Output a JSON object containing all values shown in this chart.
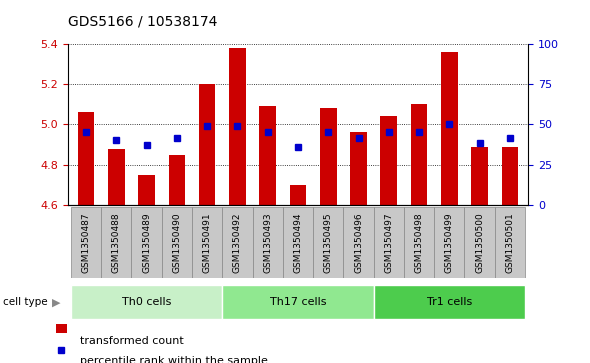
{
  "title": "GDS5166 / 10538174",
  "samples": [
    "GSM1350487",
    "GSM1350488",
    "GSM1350489",
    "GSM1350490",
    "GSM1350491",
    "GSM1350492",
    "GSM1350493",
    "GSM1350494",
    "GSM1350495",
    "GSM1350496",
    "GSM1350497",
    "GSM1350498",
    "GSM1350499",
    "GSM1350500",
    "GSM1350501"
  ],
  "red_values": [
    5.06,
    4.88,
    4.75,
    4.85,
    5.2,
    5.38,
    5.09,
    4.7,
    5.08,
    4.96,
    5.04,
    5.1,
    5.36,
    4.89,
    4.89
  ],
  "blue_values": [
    4.96,
    4.92,
    4.9,
    4.93,
    4.99,
    4.99,
    4.96,
    4.89,
    4.96,
    4.93,
    4.96,
    4.96,
    5.0,
    4.91,
    4.93
  ],
  "cell_groups": [
    {
      "label": "Th0 cells",
      "start": 0,
      "end": 5,
      "color": "#c8f0c8"
    },
    {
      "label": "Th17 cells",
      "start": 5,
      "end": 10,
      "color": "#90e890"
    },
    {
      "label": "Tr1 cells",
      "start": 10,
      "end": 15,
      "color": "#4dcc4d"
    }
  ],
  "ylim_left": [
    4.6,
    5.4
  ],
  "yticks_left": [
    4.6,
    4.8,
    5.0,
    5.2,
    5.4
  ],
  "yticks_right": [
    0,
    25,
    50,
    75,
    100
  ],
  "bar_color": "#cc0000",
  "dot_color": "#0000cc",
  "plot_bg_color": "#ffffff",
  "tick_box_color": "#c8c8c8",
  "tick_box_edge_color": "#888888",
  "left_label_color": "#cc0000",
  "right_label_color": "#0000cc"
}
